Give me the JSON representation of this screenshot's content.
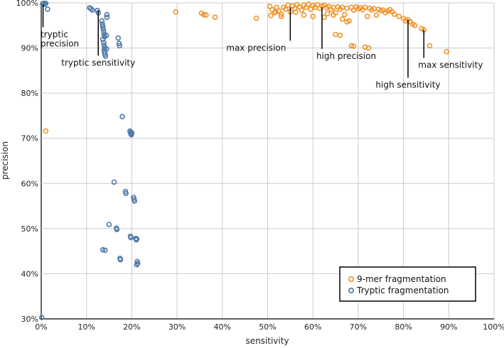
{
  "chart_data": {
    "type": "scatter",
    "xlabel": "sensitivity",
    "ylabel": "precision",
    "xlim": [
      0,
      100
    ],
    "ylim": [
      30,
      100
    ],
    "x_ticks": [
      "0%",
      "10%",
      "20%",
      "30%",
      "40%",
      "50%",
      "60%",
      "70%",
      "80%",
      "90%",
      "100%"
    ],
    "y_ticks": [
      "30%",
      "40%",
      "50%",
      "60%",
      "70%",
      "80%",
      "90%",
      "100%"
    ],
    "grid": true,
    "legend_position": "bottom-right",
    "series": [
      {
        "name": "9-mer fragmentation",
        "color": "#f0932b",
        "points": [
          [
            1.0,
            71.6
          ],
          [
            29.7,
            98.0
          ],
          [
            35.4,
            97.7
          ],
          [
            35.9,
            97.4
          ],
          [
            36.4,
            97.3
          ],
          [
            38.4,
            96.8
          ],
          [
            47.5,
            96.6
          ],
          [
            50.5,
            99.2
          ],
          [
            51.0,
            98.5
          ],
          [
            51.5,
            97.8
          ],
          [
            52.0,
            99.0
          ],
          [
            52.5,
            98.2
          ],
          [
            53.0,
            97.5
          ],
          [
            53.5,
            99.0
          ],
          [
            54.0,
            98.6
          ],
          [
            54.5,
            99.5
          ],
          [
            55.0,
            98.0
          ],
          [
            55.5,
            99.3
          ],
          [
            56.0,
            98.8
          ],
          [
            56.5,
            99.6
          ],
          [
            57.0,
            99.1
          ],
          [
            57.5,
            98.4
          ],
          [
            58.0,
            99.5
          ],
          [
            58.5,
            99.0
          ],
          [
            59.0,
            99.7
          ],
          [
            59.5,
            98.6
          ],
          [
            60.0,
            99.4
          ],
          [
            60.5,
            99.0
          ],
          [
            61.0,
            99.6
          ],
          [
            61.5,
            98.8
          ],
          [
            62.0,
            99.3
          ],
          [
            62.5,
            99.5
          ],
          [
            63.0,
            98.9
          ],
          [
            63.5,
            99.2
          ],
          [
            64.0,
            98.5
          ],
          [
            64.5,
            99.0
          ],
          [
            65.0,
            97.8
          ],
          [
            65.5,
            99.1
          ],
          [
            66.0,
            98.6
          ],
          [
            66.5,
            99.0
          ],
          [
            67.0,
            97.4
          ],
          [
            67.5,
            98.8
          ],
          [
            68.0,
            96.0
          ],
          [
            68.5,
            99.0
          ],
          [
            69.0,
            98.4
          ],
          [
            69.5,
            99.1
          ],
          [
            70.0,
            98.7
          ],
          [
            70.5,
            98.9
          ],
          [
            71.0,
            98.5
          ],
          [
            71.5,
            99.0
          ],
          [
            72.0,
            97.0
          ],
          [
            72.5,
            98.8
          ],
          [
            73.0,
            98.4
          ],
          [
            73.5,
            98.7
          ],
          [
            74.0,
            97.3
          ],
          [
            74.5,
            98.6
          ],
          [
            75.0,
            98.3
          ],
          [
            75.5,
            98.4
          ],
          [
            76.0,
            97.8
          ],
          [
            76.5,
            98.2
          ],
          [
            77.0,
            98.5
          ],
          [
            77.5,
            98.0
          ],
          [
            78.0,
            97.5
          ],
          [
            79.0,
            97.0
          ],
          [
            80.0,
            96.5
          ],
          [
            80.5,
            96.0
          ],
          [
            81.0,
            96.3
          ],
          [
            81.5,
            95.8
          ],
          [
            82.0,
            95.3
          ],
          [
            82.5,
            95.0
          ],
          [
            84.0,
            94.3
          ],
          [
            84.5,
            94.0
          ],
          [
            85.8,
            90.5
          ],
          [
            89.5,
            89.2
          ],
          [
            65.0,
            93.0
          ],
          [
            66.0,
            92.8
          ],
          [
            68.5,
            90.5
          ],
          [
            69.0,
            90.4
          ],
          [
            71.5,
            90.2
          ],
          [
            72.3,
            90.0
          ],
          [
            50.7,
            97.2
          ],
          [
            53.0,
            97.0
          ],
          [
            58.0,
            97.3
          ],
          [
            60.0,
            97.0
          ],
          [
            62.5,
            96.8
          ],
          [
            64.5,
            97.3
          ],
          [
            66.5,
            96.4
          ],
          [
            67.5,
            95.8
          ],
          [
            51.8,
            98.0
          ],
          [
            56.2,
            97.9
          ],
          [
            63.2,
            97.6
          ]
        ]
      },
      {
        "name": "Tryptic fragmentation",
        "color": "#4e79a7",
        "points": [
          [
            0.1,
            30.3
          ],
          [
            0.3,
            99.8
          ],
          [
            0.5,
            99.9
          ],
          [
            0.8,
            99.7
          ],
          [
            1.0,
            99.9
          ],
          [
            1.4,
            98.6
          ],
          [
            10.7,
            98.9
          ],
          [
            11.0,
            98.7
          ],
          [
            11.3,
            98.4
          ],
          [
            12.4,
            98.3
          ],
          [
            12.6,
            97.8
          ],
          [
            13.4,
            96.0
          ],
          [
            13.5,
            95.3
          ],
          [
            13.6,
            94.8
          ],
          [
            13.7,
            94.2
          ],
          [
            13.8,
            93.6
          ],
          [
            13.9,
            93.0
          ],
          [
            14.0,
            92.5
          ],
          [
            13.6,
            91.9
          ],
          [
            13.8,
            91.2
          ],
          [
            13.9,
            90.6
          ],
          [
            14.0,
            90.0
          ],
          [
            13.9,
            89.5
          ],
          [
            14.0,
            89.0
          ],
          [
            14.1,
            88.6
          ],
          [
            14.2,
            88.2
          ],
          [
            14.4,
            92.8
          ],
          [
            14.4,
            89.8
          ],
          [
            14.5,
            97.4
          ],
          [
            14.5,
            96.8
          ],
          [
            17.0,
            92.2
          ],
          [
            17.2,
            91.0
          ],
          [
            17.3,
            90.5
          ],
          [
            17.9,
            74.8
          ],
          [
            19.6,
            71.6
          ],
          [
            19.7,
            71.3
          ],
          [
            19.8,
            71.0
          ],
          [
            19.9,
            70.8
          ],
          [
            20.0,
            71.2
          ],
          [
            16.1,
            60.3
          ],
          [
            18.6,
            58.2
          ],
          [
            18.7,
            57.8
          ],
          [
            20.4,
            56.9
          ],
          [
            20.5,
            56.5
          ],
          [
            20.6,
            56.1
          ],
          [
            15.0,
            50.9
          ],
          [
            16.6,
            50.1
          ],
          [
            16.7,
            49.8
          ],
          [
            19.7,
            48.3
          ],
          [
            19.8,
            48.0
          ],
          [
            20.9,
            47.8
          ],
          [
            21.0,
            47.5
          ],
          [
            21.1,
            47.7
          ],
          [
            13.6,
            45.3
          ],
          [
            14.1,
            45.2
          ],
          [
            17.4,
            43.4
          ],
          [
            17.5,
            43.1
          ],
          [
            21.2,
            42.7
          ],
          [
            21.3,
            42.3
          ],
          [
            21.1,
            42.0
          ]
        ]
      }
    ],
    "annotations": [
      {
        "lines": [
          "tryptic",
          "precision"
        ],
        "x": 0.4,
        "y": 99.6,
        "label_y": 94.6,
        "anchor": "start"
      },
      {
        "lines": [
          "tryptic sensitivity"
        ],
        "x": 12.6,
        "y": 98.3,
        "label_y": 88.3,
        "anchor": "middle"
      },
      {
        "lines": [
          "max precision"
        ],
        "x": 55.0,
        "y": 99.0,
        "label_y": 91.6,
        "anchor": "end"
      },
      {
        "lines": [
          "high precision"
        ],
        "x": 62.0,
        "y": 99.0,
        "label_y": 89.8,
        "anchor": "start"
      },
      {
        "lines": [
          "high sensitivity"
        ],
        "x": 81.0,
        "y": 96.3,
        "label_y": 83.4,
        "anchor": "middle"
      },
      {
        "lines": [
          "max sensitivity"
        ],
        "x": 84.5,
        "y": 94.0,
        "label_y": 87.8,
        "anchor": "start"
      }
    ]
  }
}
